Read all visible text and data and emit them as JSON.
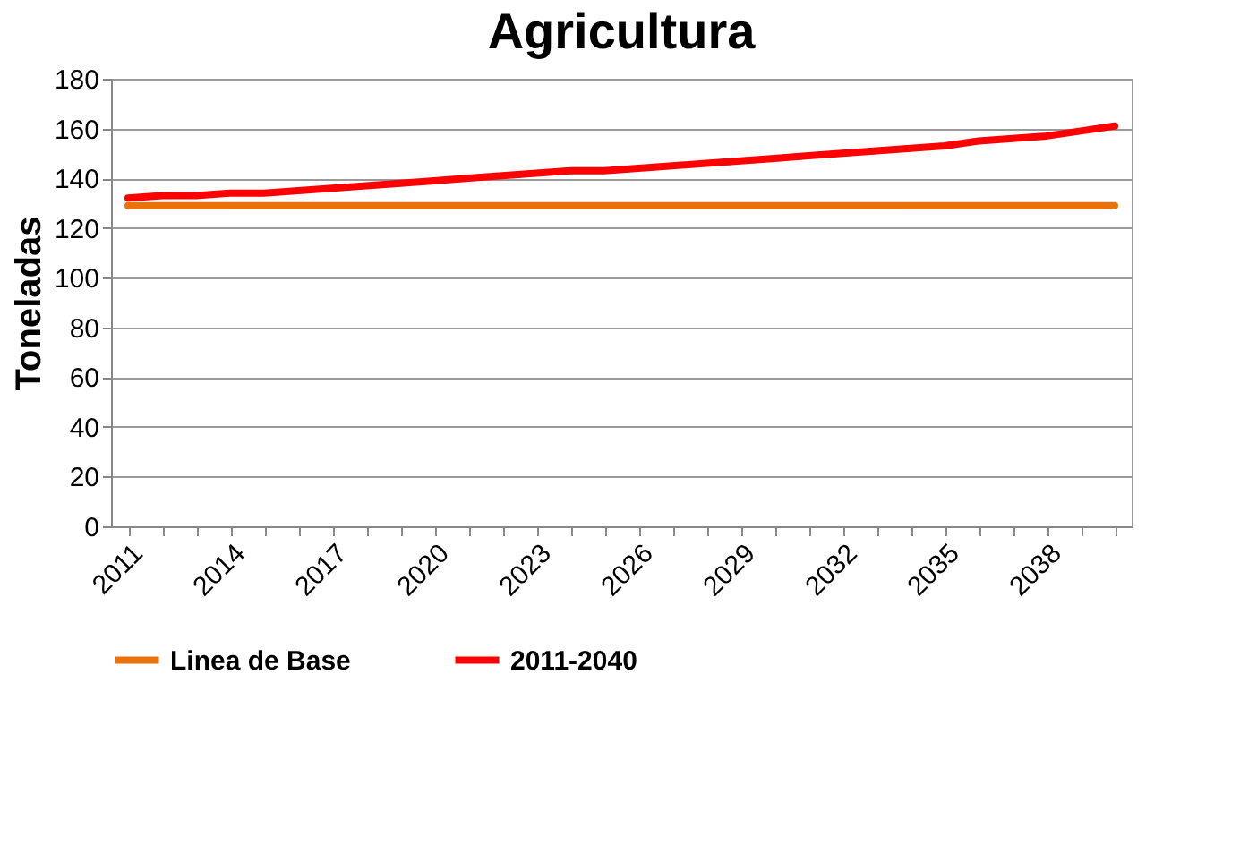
{
  "chart_data": {
    "type": "line",
    "title": "Agricultura",
    "ylabel": "Toneladas",
    "categories": [
      "2011",
      null,
      null,
      "2014",
      null,
      null,
      "2017",
      null,
      null,
      "2020",
      null,
      null,
      "2023",
      null,
      null,
      "2026",
      null,
      null,
      "2029",
      null,
      null,
      "2032",
      null,
      null,
      "2035",
      null,
      null,
      "2038",
      null,
      null
    ],
    "series": [
      {
        "name": "Linea de Base",
        "color": "#e8720c",
        "values": [
          129,
          129,
          129,
          129,
          129,
          129,
          129,
          129,
          129,
          129,
          129,
          129,
          129,
          129,
          129,
          129,
          129,
          129,
          129,
          129,
          129,
          129,
          129,
          129,
          129,
          129,
          129,
          129,
          129,
          129
        ]
      },
      {
        "name": "2011-2040",
        "color": "#ff0000",
        "values": [
          132,
          133,
          133,
          134,
          134,
          135,
          136,
          137,
          138,
          139,
          140,
          141,
          142,
          143,
          143,
          144,
          145,
          146,
          147,
          148,
          149,
          150,
          151,
          152,
          153,
          155,
          156,
          157,
          159,
          161
        ]
      }
    ],
    "ylim": [
      0,
      180
    ],
    "yticks": [
      0,
      20,
      40,
      60,
      80,
      100,
      120,
      140,
      160,
      180
    ],
    "grid": "y",
    "legend": "bottom",
    "marker": "none",
    "line_style": "solid"
  }
}
